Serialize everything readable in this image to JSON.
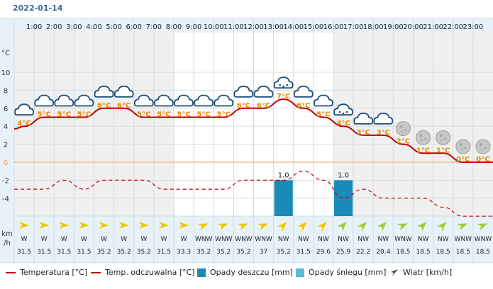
{
  "date": "2022-01-14",
  "chart_data": {
    "type": "line",
    "hours": [
      "1:00",
      "2:00",
      "3:00",
      "4:00",
      "5:00",
      "6:00",
      "7:00",
      "8:00",
      "9:00",
      "10:00",
      "11:00",
      "12:00",
      "13:00",
      "14:00",
      "15:00",
      "16:00",
      "17:00",
      "18:00",
      "19:00",
      "20:00",
      "21:00",
      "22:00",
      "23:00"
    ],
    "temp_labels": [
      "4°C",
      "5°C",
      "5°C",
      "5°C",
      "6°C",
      "6°C",
      "5°C",
      "5°C",
      "5°C",
      "5°C",
      "5°C",
      "6°C",
      "6°C",
      "7°C",
      "6°C",
      "5°C",
      "4°C",
      "3°C",
      "3°C",
      "2°C",
      "1°C",
      "1°C",
      "0°C",
      "0°C"
    ],
    "temperature": [
      4,
      5,
      5,
      5,
      6,
      6,
      5,
      5,
      5,
      5,
      5,
      6,
      6,
      7,
      6,
      5,
      4,
      3,
      3,
      2,
      1,
      1,
      0,
      0
    ],
    "feels_like": [
      -3,
      -3,
      -2,
      -3,
      -2,
      -2,
      -2,
      -3,
      -3,
      -3,
      -3,
      -2,
      -2,
      -2,
      -1,
      -2,
      -4,
      -3,
      -4,
      -4,
      -4,
      -5,
      -6,
      -6
    ],
    "weather_icons": [
      "cloud-icon",
      "cloud-icon",
      "cloud-icon",
      "cloud-icon",
      "cloud-icon",
      "cloud-icon",
      "cloud-icon",
      "cloud-icon",
      "cloud-icon",
      "cloud-icon",
      "cloud-icon",
      "cloud-icon",
      "cloud-icon",
      "cloud-rain-icon",
      "cloud-icon",
      "cloud-icon",
      "cloud-rain-icon",
      "cloud-icon",
      "cloud-icon",
      "moon-cloud-icon",
      "moon-cloud-icon",
      "moon-cloud-icon",
      "moon-cloud-icon",
      "moon-cloud-icon"
    ],
    "rain": [
      0,
      0,
      0,
      0,
      0,
      0,
      0,
      0,
      0,
      0,
      0,
      0,
      0,
      1.0,
      0,
      0,
      1.0,
      0,
      0,
      0,
      0,
      0,
      0,
      0
    ],
    "rain_labels": [
      "",
      "",
      "",
      "",
      "",
      "",
      "",
      "",
      "",
      "",
      "",
      "",
      "",
      "1.0",
      "",
      "",
      "1.0",
      "",
      "",
      "",
      "",
      "",
      "",
      ""
    ],
    "wind_dir": [
      "W",
      "W",
      "W",
      "W",
      "W",
      "W",
      "W",
      "W",
      "W",
      "WNW",
      "WNW",
      "WNW",
      "WNW",
      "NW",
      "NW",
      "NW",
      "NW",
      "NW",
      "NW",
      "WNW",
      "NW",
      "NW",
      "WNW",
      "WNW"
    ],
    "wind_speed": [
      "31.5",
      "31.5",
      "31.5",
      "31.5",
      "35.2",
      "35.2",
      "35.2",
      "31.5",
      "33.3",
      "35.2",
      "35.2",
      "35.2",
      "37",
      "35.2",
      "31.5",
      "29.6",
      "25.9",
      "22.2",
      "20.4",
      "18.5",
      "18.5",
      "18.5",
      "18.5",
      "18.5"
    ],
    "wind_arrow_color": [
      "#f0c800",
      "#f0c800",
      "#f0c800",
      "#f0c800",
      "#f0c800",
      "#f0c800",
      "#f0c800",
      "#f0c800",
      "#f0c800",
      "#f0c800",
      "#f0c800",
      "#f0c800",
      "#f0c800",
      "#f0c800",
      "#f0c800",
      "#f0c800",
      "#9acd32",
      "#9acd32",
      "#9acd32",
      "#9acd32",
      "#9acd32",
      "#9acd32",
      "#9acd32",
      "#9acd32"
    ],
    "y_unit": "°C",
    "y_ticks": [
      10,
      8,
      6,
      4,
      2,
      0,
      -2,
      -4
    ],
    "ylim": [
      -6,
      12
    ],
    "wind_unit_line1": "km",
    "wind_unit_line2": "/h",
    "colors": {
      "temperature": "#c00000",
      "feels_like": "#c00000",
      "rain": "#1a8ab8",
      "snow": "#5bbcd8",
      "zero_line": "#f4a261",
      "label": "#e08a00"
    }
  },
  "legend": {
    "temperature": "Temperatura [°C]",
    "feels_like": "Temp. odczuwalna [°C]",
    "rain": "Opady deszczu [mm]",
    "snow": "Opady śniegu [mm]",
    "wind": "Wiatr [km/h]"
  }
}
